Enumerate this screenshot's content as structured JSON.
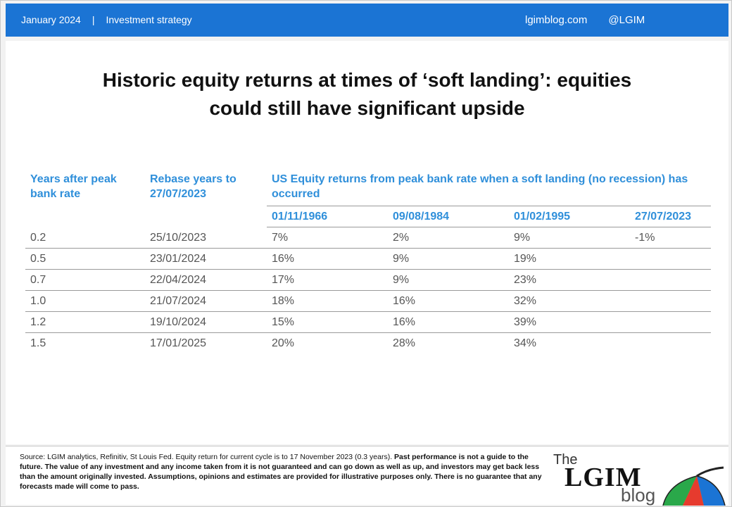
{
  "header": {
    "date": "January 2024",
    "separator": "|",
    "category": "Investment strategy",
    "site": "lgimblog.com",
    "handle": "@LGIM"
  },
  "title": {
    "line1": "Historic equity returns at times of ‘soft landing’: equities",
    "line2": "could still have significant upside"
  },
  "table": {
    "col1_header": "Years after peak bank rate",
    "col2_header": "Rebase years to 27/07/2023",
    "group_header": "US Equity returns from peak bank rate when a soft landing (no recession) has occurred",
    "dates": [
      "01/11/1966",
      "09/08/1984",
      "01/02/1995",
      "27/07/2023"
    ],
    "rows": [
      [
        "0.2",
        "25/10/2023",
        "7%",
        "2%",
        "9%",
        "-1%"
      ],
      [
        "0.5",
        "23/01/2024",
        "16%",
        "9%",
        "19%",
        ""
      ],
      [
        "0.7",
        "22/04/2024",
        "17%",
        "9%",
        "23%",
        ""
      ],
      [
        "1.0",
        "21/07/2024",
        "18%",
        "16%",
        "32%",
        ""
      ],
      [
        "1.2",
        "19/10/2024",
        "15%",
        "16%",
        "39%",
        ""
      ],
      [
        "1.5",
        "17/01/2025",
        "20%",
        "28%",
        "34%",
        ""
      ]
    ]
  },
  "footer": {
    "source": "Source: LGIM analytics, Refinitiv, St Louis Fed. Equity return for current cycle is to 17 November 2023 (0.3 years).",
    "disclaimer": "Past performance is not a guide to the future. The value of any investment and any income taken from it is not guaranteed and can go down as well as up, and investors may get back less than the amount originally invested. Assumptions, opinions and estimates are provided for illustrative purposes only. There is no guarantee that any forecasts made will come to pass."
  },
  "logo": {
    "the": "The",
    "name": "LGIM",
    "blog": "blog",
    "icon": "umbrella-icon",
    "colors": [
      "#e63b2e",
      "#f6c20f",
      "#2aa84a",
      "#1b74d4"
    ]
  },
  "colors": {
    "header_bg": "#1b74d4",
    "table_header": "#2f8fda"
  }
}
